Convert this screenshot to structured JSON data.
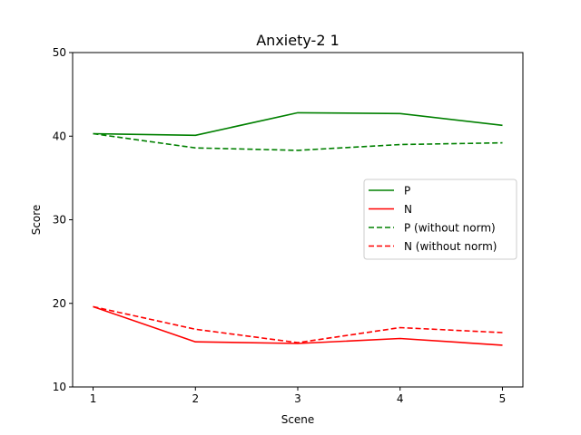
{
  "chart_data": {
    "type": "line",
    "title": "Anxiety-2 1",
    "xlabel": "Scene",
    "ylabel": "Score",
    "x": [
      1,
      2,
      3,
      4,
      5
    ],
    "xlim": [
      0.8,
      5.2
    ],
    "ylim": [
      10,
      50
    ],
    "xticks": [
      "1",
      "2",
      "3",
      "4",
      "5"
    ],
    "yticks": [
      "10",
      "20",
      "30",
      "40",
      "50"
    ],
    "grid": false,
    "legend_position": "center-right",
    "series": [
      {
        "name": "P",
        "values": [
          40.3,
          40.1,
          42.8,
          42.7,
          41.3
        ],
        "color": "#008000",
        "dash": "solid"
      },
      {
        "name": "N",
        "values": [
          19.6,
          15.4,
          15.2,
          15.8,
          15.0
        ],
        "color": "#ff0000",
        "dash": "solid"
      },
      {
        "name": "P (without norm)",
        "values": [
          40.3,
          38.6,
          38.3,
          39.0,
          39.2
        ],
        "color": "#008000",
        "dash": "dashed"
      },
      {
        "name": "N (without norm)",
        "values": [
          19.6,
          16.9,
          15.3,
          17.1,
          16.5
        ],
        "color": "#ff0000",
        "dash": "dashed"
      }
    ]
  }
}
